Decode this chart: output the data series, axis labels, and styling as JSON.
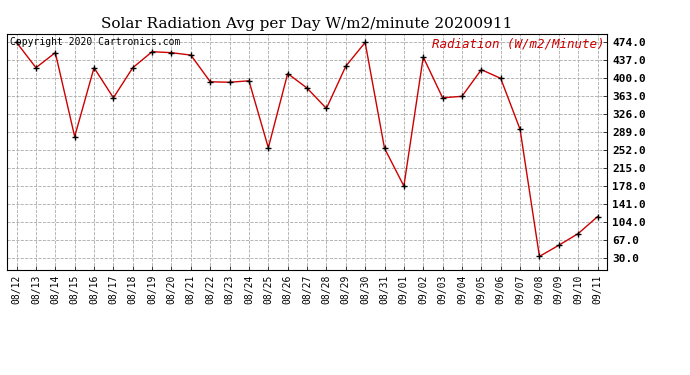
{
  "title": "Solar Radiation Avg per Day W/m2/minute 20200911",
  "copyright": "Copyright 2020 Cartronics.com",
  "legend_label": "Radiation (W/m2/Minute)",
  "dates": [
    "08/12",
    "08/13",
    "08/14",
    "08/15",
    "08/16",
    "08/17",
    "08/18",
    "08/19",
    "08/20",
    "08/21",
    "08/22",
    "08/23",
    "08/24",
    "08/25",
    "08/26",
    "08/27",
    "08/28",
    "08/29",
    "08/30",
    "08/31",
    "09/01",
    "09/02",
    "09/03",
    "09/04",
    "09/05",
    "09/06",
    "09/07",
    "09/08",
    "09/09",
    "09/10",
    "09/11"
  ],
  "values": [
    474,
    422,
    453,
    280,
    422,
    360,
    422,
    455,
    453,
    448,
    393,
    392,
    395,
    257,
    410,
    380,
    338,
    425,
    474,
    256,
    178,
    444,
    360,
    363,
    418,
    400,
    295,
    33,
    56,
    80,
    115
  ],
  "line_color": "#cc0000",
  "marker_color": "#000000",
  "background_color": "#ffffff",
  "grid_color": "#aaaaaa",
  "yticks": [
    30.0,
    67.0,
    104.0,
    141.0,
    178.0,
    215.0,
    252.0,
    289.0,
    326.0,
    363.0,
    400.0,
    437.0,
    474.0
  ],
  "ylim_min": 5.0,
  "ylim_max": 492.0,
  "title_fontsize": 11,
  "legend_fontsize": 9,
  "copyright_fontsize": 7,
  "tick_fontsize": 8,
  "xtick_fontsize": 7
}
